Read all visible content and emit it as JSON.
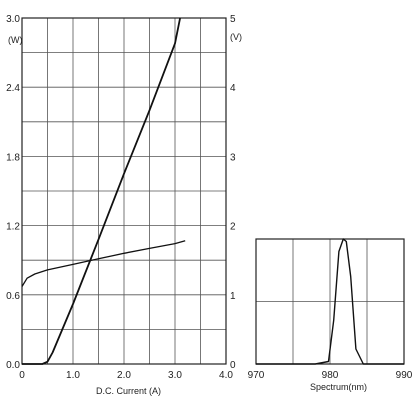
{
  "chart_data": [
    {
      "type": "line",
      "xlabel": "D.C.  Current  (A)",
      "left_axis_unit": "(W)",
      "right_axis_unit": "(V)",
      "xlim": [
        0,
        4.0
      ],
      "ylim_left": [
        0,
        3.0
      ],
      "ylim_right": [
        0,
        5
      ],
      "x_ticks": [
        "0",
        "1.0",
        "2.0",
        "3.0",
        "4.0"
      ],
      "y_left_ticks": [
        "0.0",
        "0.6",
        "1.2",
        "1.8",
        "2.4",
        "3.0"
      ],
      "y_right_ticks": [
        "0",
        "1",
        "2",
        "3",
        "4",
        "5"
      ],
      "grid": true,
      "series": [
        {
          "axis": "left",
          "x": [
            0.0,
            0.4,
            0.5,
            0.6,
            1.0,
            1.5,
            2.0,
            2.5,
            3.0,
            3.1
          ],
          "y": [
            0.0,
            0.0,
            0.02,
            0.1,
            0.52,
            1.08,
            1.65,
            2.2,
            2.78,
            3.0
          ]
        },
        {
          "axis": "right",
          "x": [
            0.0,
            0.1,
            0.25,
            0.5,
            1.0,
            1.5,
            2.0,
            2.5,
            3.0,
            3.2
          ],
          "y": [
            1.12,
            1.24,
            1.3,
            1.36,
            1.44,
            1.52,
            1.6,
            1.67,
            1.74,
            1.78
          ]
        }
      ]
    },
    {
      "type": "line",
      "xlabel": "Spectrum(nm)",
      "xlim": [
        970,
        990
      ],
      "ylim": [
        0,
        1
      ],
      "x_ticks": [
        "970",
        "980",
        "990"
      ],
      "grid": true,
      "series": [
        {
          "x": [
            970,
            978,
            979.8,
            980.5,
            981.2,
            981.8,
            982.2,
            982.8,
            983.5,
            984.5,
            990
          ],
          "y": [
            0,
            0,
            0.02,
            0.35,
            0.9,
            1.0,
            0.98,
            0.7,
            0.12,
            0,
            0
          ]
        }
      ]
    }
  ]
}
